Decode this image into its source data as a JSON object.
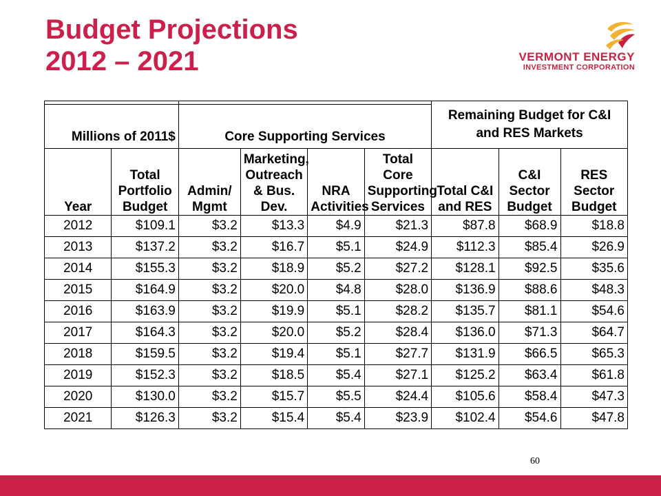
{
  "slide": {
    "title_line1": "Budget Projections",
    "title_line2": "2012 – 2021",
    "page_number": "60",
    "accent_color": "#cc1f4a"
  },
  "logo": {
    "line1": "VERMONT ENERGY",
    "line2": "INVESTMENT CORPORATION",
    "mark_colors": [
      "#f2b233",
      "#c62342"
    ]
  },
  "table": {
    "group_headers": {
      "units": "Millions of 2011$",
      "core": "Core Supporting Services",
      "remaining": "Remaining Budget for C&I and RES Markets"
    },
    "columns": [
      "Year",
      "Total Portfolio Budget",
      "Admin/ Mgmt",
      "Marketing, Outreach & Bus. Dev.",
      "NRA Activities",
      "Total Core Supporting Services",
      "Total C&I and RES",
      "C&I Sector Budget",
      "RES Sector Budget"
    ],
    "rows": [
      [
        "2012",
        "$109.1",
        "$3.2",
        "$13.3",
        "$4.9",
        "$21.3",
        "$87.8",
        "$68.9",
        "$18.8"
      ],
      [
        "2013",
        "$137.2",
        "$3.2",
        "$16.7",
        "$5.1",
        "$24.9",
        "$112.3",
        "$85.4",
        "$26.9"
      ],
      [
        "2014",
        "$155.3",
        "$3.2",
        "$18.9",
        "$5.2",
        "$27.2",
        "$128.1",
        "$92.5",
        "$35.6"
      ],
      [
        "2015",
        "$164.9",
        "$3.2",
        "$20.0",
        "$4.8",
        "$28.0",
        "$136.9",
        "$88.6",
        "$48.3"
      ],
      [
        "2016",
        "$163.9",
        "$3.2",
        "$19.9",
        "$5.1",
        "$28.2",
        "$135.7",
        "$81.1",
        "$54.6"
      ],
      [
        "2017",
        "$164.3",
        "$3.2",
        "$20.0",
        "$5.2",
        "$28.4",
        "$136.0",
        "$71.3",
        "$64.7"
      ],
      [
        "2018",
        "$159.5",
        "$3.2",
        "$19.4",
        "$5.1",
        "$27.7",
        "$131.9",
        "$66.5",
        "$65.3"
      ],
      [
        "2019",
        "$152.3",
        "$3.2",
        "$18.5",
        "$5.4",
        "$27.1",
        "$125.2",
        "$63.4",
        "$61.8"
      ],
      [
        "2020",
        "$130.0",
        "$3.2",
        "$15.7",
        "$5.5",
        "$24.4",
        "$105.6",
        "$58.4",
        "$47.3"
      ],
      [
        "2021",
        "$126.3",
        "$3.2",
        "$15.4",
        "$5.4",
        "$23.9",
        "$102.4",
        "$54.6",
        "$47.8"
      ]
    ]
  }
}
